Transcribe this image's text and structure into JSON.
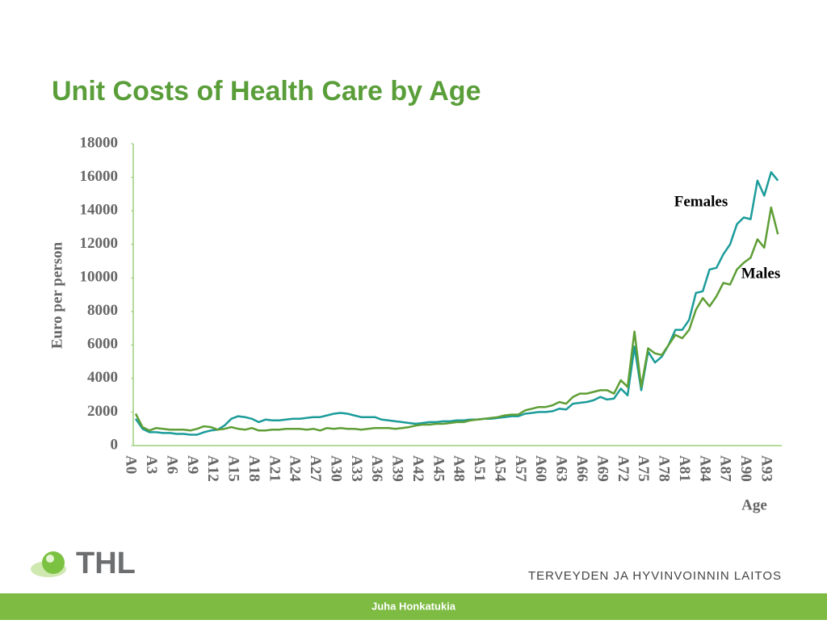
{
  "chart_data": {
    "type": "line",
    "title": "Unit Costs of Health Care by Age",
    "y_label": "Euro per person",
    "x_label": "Age",
    "categories": [
      "A0",
      null,
      null,
      "A3",
      null,
      null,
      "A6",
      null,
      null,
      "A9",
      null,
      null,
      "A12",
      null,
      null,
      "A15",
      null,
      null,
      "A18",
      null,
      null,
      "A21",
      null,
      null,
      "A24",
      null,
      null,
      "A27",
      null,
      null,
      "A30",
      null,
      null,
      "A33",
      null,
      null,
      "A36",
      null,
      null,
      "A39",
      null,
      null,
      "A42",
      null,
      null,
      "A45",
      null,
      null,
      "A48",
      null,
      null,
      "A51",
      null,
      null,
      "A54",
      null,
      null,
      "A57",
      null,
      null,
      "A60",
      null,
      null,
      "A63",
      null,
      null,
      "A66",
      null,
      null,
      "A69",
      null,
      null,
      "A72",
      null,
      null,
      "A75",
      null,
      null,
      "A78",
      null,
      null,
      "A81",
      null,
      null,
      "A84",
      null,
      null,
      "A87",
      null,
      null,
      "A90",
      null,
      null,
      "A93",
      null
    ],
    "series": [
      {
        "name": "Females",
        "color": "#1b9c9a",
        "values": [
          1600,
          1000,
          800,
          800,
          750,
          750,
          700,
          700,
          650,
          650,
          800,
          900,
          950,
          1200,
          1600,
          1750,
          1700,
          1600,
          1400,
          1550,
          1500,
          1500,
          1550,
          1600,
          1600,
          1650,
          1700,
          1700,
          1800,
          1900,
          1950,
          1900,
          1800,
          1700,
          1700,
          1700,
          1550,
          1500,
          1450,
          1400,
          1350,
          1300,
          1350,
          1400,
          1400,
          1450,
          1450,
          1500,
          1500,
          1550,
          1550,
          1600,
          1600,
          1650,
          1700,
          1750,
          1750,
          1900,
          1950,
          2000,
          2000,
          2050,
          2200,
          2150,
          2500,
          2550,
          2600,
          2700,
          2900,
          2750,
          2800,
          3400,
          3000,
          5900,
          3300,
          5600,
          4950,
          5300,
          6000,
          6900,
          6900,
          7500,
          9100,
          9200,
          10500,
          10600,
          11400,
          12000,
          13200,
          13600,
          13500,
          15800,
          14900,
          16300,
          15800
        ]
      },
      {
        "name": "Males",
        "color": "#5e9e36",
        "values": [
          1900,
          1100,
          900,
          1050,
          1000,
          950,
          950,
          950,
          900,
          1000,
          1150,
          1100,
          950,
          1000,
          1100,
          1000,
          950,
          1050,
          900,
          900,
          950,
          950,
          1000,
          1000,
          1000,
          950,
          1000,
          900,
          1050,
          1000,
          1050,
          1000,
          1000,
          950,
          1000,
          1050,
          1050,
          1050,
          1000,
          1050,
          1100,
          1200,
          1250,
          1250,
          1300,
          1300,
          1350,
          1400,
          1400,
          1500,
          1550,
          1600,
          1650,
          1700,
          1800,
          1850,
          1850,
          2100,
          2200,
          2300,
          2300,
          2400,
          2600,
          2500,
          2900,
          3100,
          3100,
          3200,
          3300,
          3300,
          3100,
          3900,
          3500,
          6800,
          3500,
          5800,
          5500,
          5400,
          6000,
          6600,
          6400,
          6900,
          8100,
          8800,
          8300,
          8900,
          9700,
          9600,
          10500,
          10900,
          11200,
          12300,
          11800,
          14200,
          12600
        ]
      }
    ],
    "ylim": [
      0,
      18000
    ],
    "yticks": [
      0,
      2000,
      4000,
      6000,
      8000,
      10000,
      12000,
      14000,
      16000,
      18000
    ],
    "grid": false
  },
  "footer": {
    "logo": "THL",
    "institute": "TERVEYDEN JA HYVINVOINNIN LAITOS",
    "author": "Juha Honkatukia"
  }
}
